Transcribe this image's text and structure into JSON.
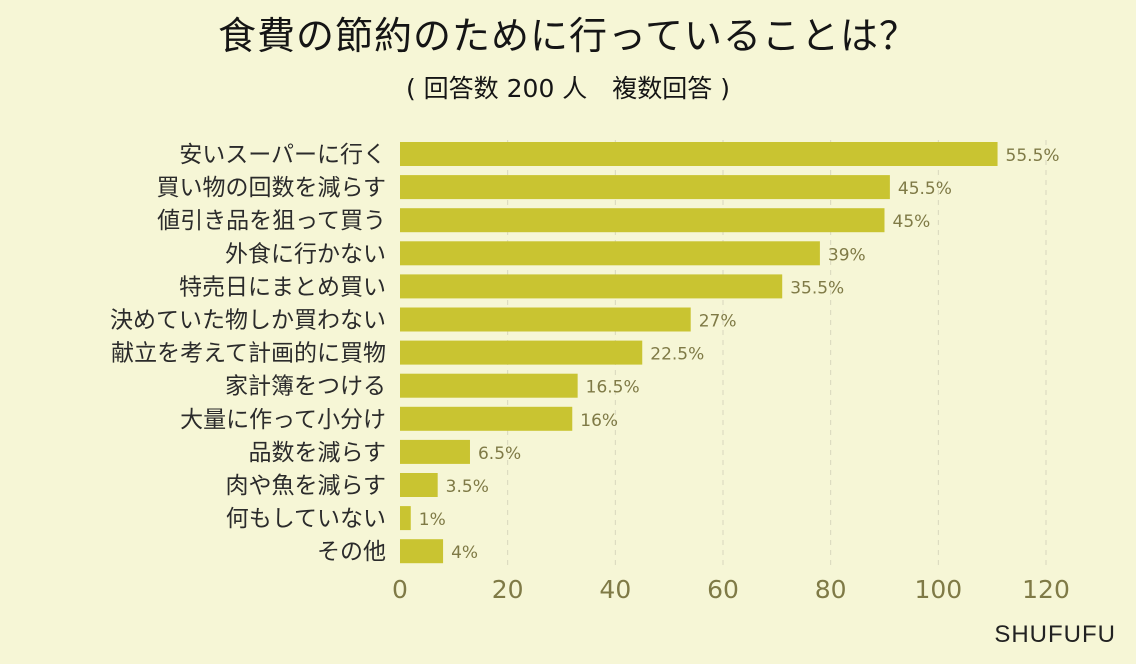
{
  "header": {
    "title": "食費の節約のために行っていることは？",
    "subtitle": "( 回答数 200 人　複数回答 )"
  },
  "brand": {
    "name": "SHUFUFU"
  },
  "chart_data": {
    "type": "bar",
    "orientation": "horizontal",
    "title": "食費の節約のために行っていることは？",
    "subtitle": "( 回答数 200 人　複数回答 )",
    "categories": [
      "安いスーパーに行く",
      "買い物の回数を減らす",
      "値引き品を狙って買う",
      "外食に行かない",
      "特売日にまとめ買い",
      "決めていた物しか買わない",
      "献立を考えて計画的に買物",
      "家計簿をつける",
      "大量に作って小分け",
      "品数を減らす",
      "肉や魚を減らす",
      "何もしていない",
      "その他"
    ],
    "values": [
      111,
      91,
      90,
      78,
      71,
      54,
      45,
      33,
      32,
      13,
      7,
      2,
      8
    ],
    "value_labels": [
      "55.5%",
      "45.5%",
      "45%",
      "39%",
      "35.5%",
      "27%",
      "22.5%",
      "16.5%",
      "16%",
      "6.5%",
      "3.5%",
      "1%",
      "4%"
    ],
    "xlim": [
      0,
      120
    ],
    "xticks": [
      0,
      20,
      40,
      60,
      80,
      100,
      120
    ],
    "xtick_labels": [
      "0",
      "20",
      "40",
      "60",
      "80",
      "100",
      "120"
    ],
    "xlabel": "",
    "ylabel": "",
    "grid": "vertical-dashed",
    "legend": "none",
    "colors": {
      "background": "#f6f6d6",
      "bar": "#c9c431",
      "grid": "#d8d7bd",
      "category_text": "#2b2b2b",
      "value_text": "#7f7a46",
      "tick_text": "#7f7a46"
    }
  }
}
